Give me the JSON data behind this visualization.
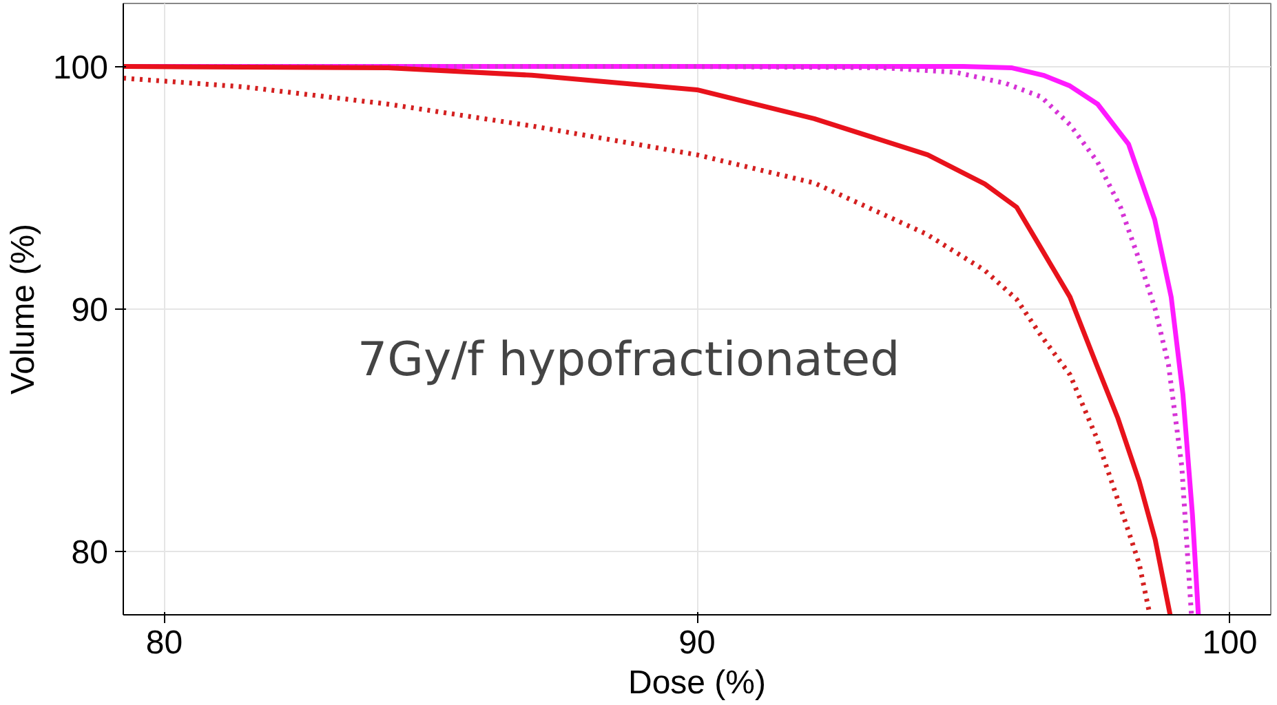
{
  "chart_data": {
    "type": "line",
    "xlabel": "Dose (%)",
    "ylabel": "Volume (%)",
    "xlim": [
      79.23,
      100.77
    ],
    "ylim": [
      77.4,
      102.6
    ],
    "xticks": [
      80,
      90,
      100
    ],
    "yticks": [
      80,
      90,
      100
    ],
    "grid": true,
    "annotations": [
      "7Gy/f hypofractionated"
    ],
    "series": [
      {
        "color": "#ff1aff",
        "line_style": "solid",
        "x": [
          79.23,
          90,
          95,
          95.9,
          96.5,
          97.0,
          97.52,
          98.1,
          98.59,
          98.9,
          99.12,
          99.3,
          99.41
        ],
        "values": [
          100,
          100,
          100,
          99.95,
          99.64,
          99.2,
          98.45,
          96.8,
          93.7,
          90.5,
          86.5,
          81.5,
          77.4
        ]
      },
      {
        "color": "#d633d6",
        "line_style": "dotted",
        "x": [
          79.23,
          90,
          93.5,
          94.86,
          95.8,
          96.46,
          97.0,
          97.52,
          97.95,
          98.32,
          98.6,
          98.85,
          99.1,
          99.28
        ],
        "values": [
          100,
          100,
          99.95,
          99.76,
          99.3,
          98.75,
          97.6,
          96.06,
          94.2,
          91.9,
          90.0,
          87.7,
          83.5,
          77.4
        ]
      },
      {
        "color": "#e8121b",
        "line_style": "solid",
        "x": [
          79.23,
          84.2,
          86.9,
          90,
          92.2,
          94.33,
          95.4,
          96.0,
          96.46,
          97.0,
          97.5,
          97.9,
          98.3,
          98.6,
          98.88
        ],
        "values": [
          100,
          99.95,
          99.64,
          99.04,
          97.85,
          96.36,
          95.16,
          94.2,
          92.5,
          90.5,
          87.7,
          85.5,
          82.9,
          80.5,
          77.4
        ]
      },
      {
        "color": "#d42020",
        "line_style": "dotted",
        "x": [
          79.23,
          81.5,
          84.2,
          86.9,
          90,
          92.2,
          94.3,
          95.4,
          96.0,
          96.46,
          97.0,
          97.5,
          98.06,
          98.3,
          98.5
        ],
        "values": [
          99.52,
          99.16,
          98.45,
          97.55,
          96.36,
          95.2,
          93.1,
          91.6,
          90.4,
          88.9,
          87.3,
          84.7,
          81.1,
          79.5,
          77.4
        ]
      }
    ]
  }
}
